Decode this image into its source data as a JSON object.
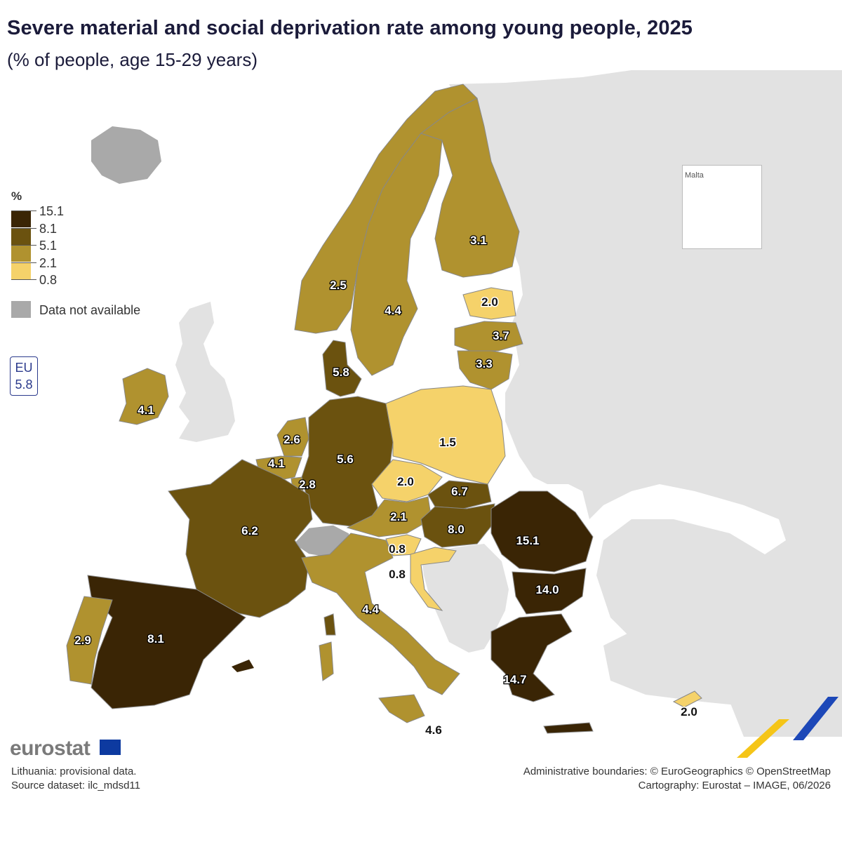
{
  "title": "Severe material and social deprivation rate among young people, 2025",
  "subtitle": "(% of people, age 15-29 years)",
  "legend": {
    "title": "%",
    "classes": [
      {
        "label": "15.1",
        "color": "#3a2505"
      },
      {
        "label": "8.1",
        "color": "#6b520f"
      },
      {
        "label": "5.1",
        "color": "#b0922f"
      },
      {
        "label": "2.1",
        "color": "#f5d26a"
      },
      {
        "label": "0.8",
        "color": ""
      }
    ],
    "na_label": "Data not available",
    "na_color": "#a9a9a9"
  },
  "eu": {
    "label": "EU",
    "value": "5.8"
  },
  "inset": {
    "name": "Malta",
    "value": "4.6"
  },
  "colors": {
    "nonEU": "#e2e2e2",
    "na": "#a9a9a9",
    "sea": "#ffffff",
    "border": "#888888"
  },
  "regions": [
    {
      "name": "Norway",
      "value": "2.5"
    },
    {
      "name": "Sweden",
      "value": "4.4"
    },
    {
      "name": "Finland",
      "value": "3.1"
    },
    {
      "name": "Estonia",
      "value": "2.0"
    },
    {
      "name": "Latvia",
      "value": "3.7"
    },
    {
      "name": "Lithuania",
      "value": "3.3"
    },
    {
      "name": "Denmark",
      "value": "5.8"
    },
    {
      "name": "Ireland",
      "value": "4.1"
    },
    {
      "name": "Netherlands",
      "value": "2.6"
    },
    {
      "name": "Belgium",
      "value": "4.1"
    },
    {
      "name": "Luxembourg",
      "value": "2.8"
    },
    {
      "name": "Germany",
      "value": "5.6"
    },
    {
      "name": "Poland",
      "value": "1.5"
    },
    {
      "name": "Czechia",
      "value": "2.0"
    },
    {
      "name": "Slovakia",
      "value": "6.7"
    },
    {
      "name": "Austria",
      "value": "2.1"
    },
    {
      "name": "Hungary",
      "value": "8.0"
    },
    {
      "name": "Slovenia",
      "value": "0.8"
    },
    {
      "name": "Croatia",
      "value": "0.8"
    },
    {
      "name": "Romania",
      "value": "15.1"
    },
    {
      "name": "Bulgaria",
      "value": "14.0"
    },
    {
      "name": "France",
      "value": "6.2"
    },
    {
      "name": "Spain",
      "value": "8.1"
    },
    {
      "name": "Portugal",
      "value": "2.9"
    },
    {
      "name": "Italy",
      "value": "4.4"
    },
    {
      "name": "Greece",
      "value": "14.7"
    },
    {
      "name": "Cyprus",
      "value": "2.0"
    },
    {
      "name": "Malta",
      "value": "4.6"
    }
  ],
  "footer": {
    "brand": "eurostat",
    "note1": "Lithuania: provisional data.",
    "note2": "Source dataset: ilc_mdsd11",
    "credit1": "Administrative boundaries: © EuroGeographics © OpenStreetMap",
    "credit2": "Cartography: Eurostat – IMAGE, 06/2026"
  }
}
